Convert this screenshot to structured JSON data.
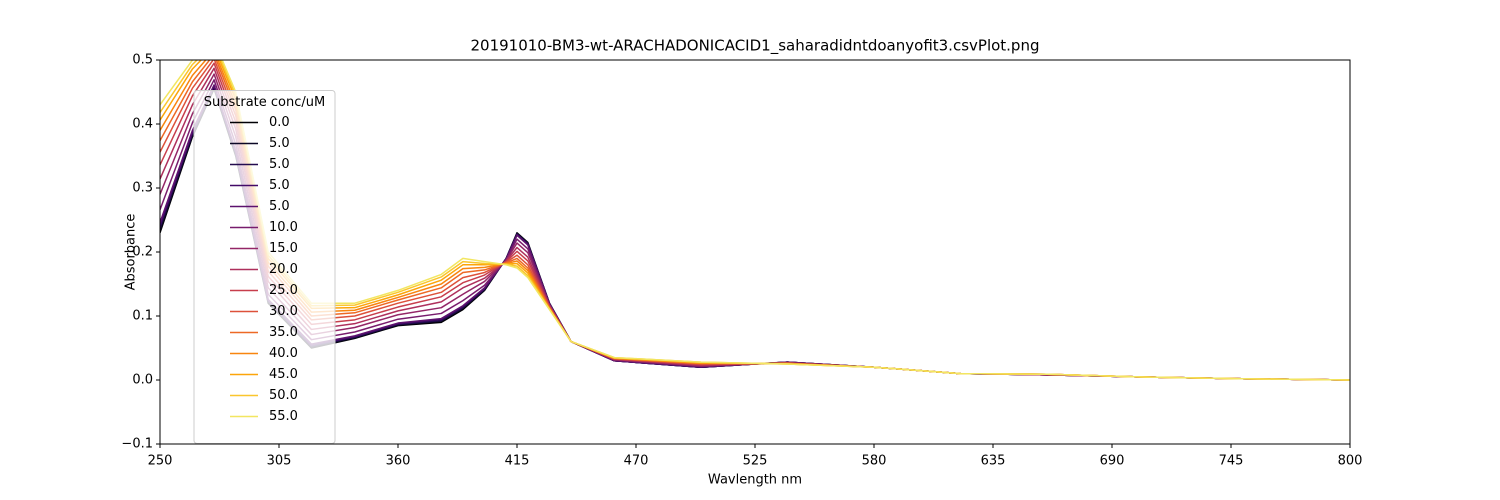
{
  "chart_data": {
    "type": "line",
    "title": "20191010-BM3-wt-ARACHADONICACID1_saharadidntdoanyofit3.csvPlot.png",
    "x_label": "Wavlength nm",
    "y_label": "Absorbance",
    "legend_title": "Substrate conc/uM",
    "legend": "center left",
    "xlim": [
      250,
      800
    ],
    "ylim": [
      -0.1,
      0.5
    ],
    "xticks": [
      250,
      305,
      360,
      415,
      470,
      525,
      580,
      635,
      690,
      745,
      800
    ],
    "yticks": [
      {
        "value": -0.1,
        "label": "−0.1"
      },
      {
        "value": 0,
        "label": "0.0"
      },
      0.1,
      0.2,
      0.3,
      0.4,
      0.5
    ],
    "x": [
      250,
      265,
      275,
      285,
      300,
      320,
      340,
      360,
      380,
      390,
      400,
      410,
      415,
      420,
      430,
      440,
      460,
      500,
      540,
      580,
      620,
      660,
      700,
      750,
      800
    ],
    "series": [
      {
        "name": "0.0",
        "color": "#000004",
        "values": [
          0.23,
          0.38,
          0.455,
          0.35,
          0.12,
          0.05,
          0.065,
          0.085,
          0.09,
          0.11,
          0.14,
          0.19,
          0.23,
          0.215,
          0.12,
          0.06,
          0.03,
          0.02,
          0.028,
          0.02,
          0.01,
          0.008,
          0.005,
          0.002,
          0.0
        ]
      },
      {
        "name": "5.0",
        "color": "#0c0826",
        "values": [
          0.234,
          0.382,
          0.457,
          0.352,
          0.122,
          0.051,
          0.066,
          0.086,
          0.092,
          0.112,
          0.141,
          0.19,
          0.229,
          0.214,
          0.12,
          0.06,
          0.03,
          0.02,
          0.028,
          0.02,
          0.01,
          0.008,
          0.005,
          0.002,
          0.0
        ]
      },
      {
        "name": "5.0",
        "color": "#240c4f",
        "values": [
          0.238,
          0.385,
          0.458,
          0.354,
          0.123,
          0.053,
          0.067,
          0.087,
          0.093,
          0.113,
          0.142,
          0.19,
          0.228,
          0.213,
          0.12,
          0.06,
          0.03,
          0.02,
          0.028,
          0.02,
          0.01,
          0.008,
          0.005,
          0.002,
          0.0
        ]
      },
      {
        "name": "5.0",
        "color": "#420a68",
        "values": [
          0.242,
          0.387,
          0.46,
          0.356,
          0.125,
          0.054,
          0.068,
          0.088,
          0.095,
          0.115,
          0.143,
          0.189,
          0.227,
          0.212,
          0.119,
          0.06,
          0.03,
          0.02,
          0.028,
          0.02,
          0.01,
          0.008,
          0.005,
          0.002,
          0.0
        ]
      },
      {
        "name": "5.0",
        "color": "#5d126e",
        "values": [
          0.246,
          0.39,
          0.461,
          0.358,
          0.126,
          0.056,
          0.069,
          0.089,
          0.096,
          0.116,
          0.144,
          0.189,
          0.226,
          0.211,
          0.119,
          0.06,
          0.03,
          0.021,
          0.028,
          0.02,
          0.01,
          0.008,
          0.005,
          0.002,
          0.0
        ]
      },
      {
        "name": "10.0",
        "color": "#781c6d",
        "values": [
          0.266,
          0.402,
          0.469,
          0.368,
          0.134,
          0.063,
          0.075,
          0.095,
          0.104,
          0.124,
          0.148,
          0.188,
          0.22,
          0.205,
          0.118,
          0.06,
          0.031,
          0.021,
          0.027,
          0.02,
          0.01,
          0.008,
          0.005,
          0.002,
          0.0
        ]
      },
      {
        "name": "15.0",
        "color": "#932667",
        "values": [
          0.29,
          0.416,
          0.478,
          0.38,
          0.144,
          0.071,
          0.082,
          0.102,
          0.113,
          0.134,
          0.154,
          0.187,
          0.214,
          0.199,
          0.117,
          0.06,
          0.032,
          0.022,
          0.027,
          0.02,
          0.01,
          0.008,
          0.005,
          0.002,
          0.0
        ]
      },
      {
        "name": "20.0",
        "color": "#ae305c",
        "values": [
          0.314,
          0.43,
          0.487,
          0.392,
          0.154,
          0.079,
          0.088,
          0.108,
          0.122,
          0.144,
          0.159,
          0.186,
          0.207,
          0.192,
          0.116,
          0.06,
          0.032,
          0.023,
          0.027,
          0.02,
          0.01,
          0.008,
          0.005,
          0.002,
          0.0
        ]
      },
      {
        "name": "25.0",
        "color": "#c73e4c",
        "values": [
          0.336,
          0.444,
          0.495,
          0.403,
          0.162,
          0.087,
          0.094,
          0.114,
          0.13,
          0.152,
          0.164,
          0.185,
          0.201,
          0.186,
          0.115,
          0.06,
          0.033,
          0.024,
          0.026,
          0.02,
          0.01,
          0.009,
          0.005,
          0.002,
          0.0
        ]
      },
      {
        "name": "30.0",
        "color": "#dd513a",
        "values": [
          0.356,
          0.456,
          0.502,
          0.413,
          0.17,
          0.094,
          0.1,
          0.12,
          0.137,
          0.16,
          0.168,
          0.184,
          0.195,
          0.18,
          0.114,
          0.06,
          0.033,
          0.025,
          0.026,
          0.02,
          0.01,
          0.009,
          0.005,
          0.002,
          0.0
        ]
      },
      {
        "name": "35.0",
        "color": "#ed6925",
        "values": [
          0.374,
          0.466,
          0.509,
          0.422,
          0.178,
          0.1,
          0.105,
          0.125,
          0.144,
          0.168,
          0.172,
          0.183,
          0.19,
          0.175,
          0.113,
          0.06,
          0.034,
          0.026,
          0.026,
          0.02,
          0.01,
          0.009,
          0.005,
          0.002,
          0.0
        ]
      },
      {
        "name": "40.0",
        "color": "#f8850f",
        "values": [
          0.39,
          0.476,
          0.515,
          0.43,
          0.184,
          0.106,
          0.109,
          0.129,
          0.15,
          0.174,
          0.176,
          0.182,
          0.186,
          0.171,
          0.112,
          0.06,
          0.034,
          0.026,
          0.026,
          0.02,
          0.01,
          0.009,
          0.005,
          0.002,
          0.0
        ]
      },
      {
        "name": "45.0",
        "color": "#fca50a",
        "values": [
          0.406,
          0.486,
          0.521,
          0.438,
          0.19,
          0.112,
          0.113,
          0.133,
          0.156,
          0.18,
          0.18,
          0.181,
          0.182,
          0.167,
          0.111,
          0.06,
          0.034,
          0.027,
          0.025,
          0.02,
          0.01,
          0.009,
          0.005,
          0.002,
          0.0
        ]
      },
      {
        "name": "50.0",
        "color": "#fac62d",
        "values": [
          0.418,
          0.493,
          0.526,
          0.444,
          0.195,
          0.116,
          0.117,
          0.137,
          0.161,
          0.185,
          0.182,
          0.181,
          0.178,
          0.163,
          0.111,
          0.06,
          0.035,
          0.028,
          0.025,
          0.02,
          0.01,
          0.009,
          0.005,
          0.002,
          0.0
        ]
      },
      {
        "name": "55.0",
        "color": "#f2e661",
        "values": [
          0.43,
          0.5,
          0.53,
          0.45,
          0.2,
          0.12,
          0.12,
          0.14,
          0.165,
          0.19,
          0.185,
          0.18,
          0.175,
          0.16,
          0.11,
          0.06,
          0.035,
          0.028,
          0.025,
          0.02,
          0.01,
          0.009,
          0.005,
          0.002,
          0.0
        ]
      }
    ]
  }
}
